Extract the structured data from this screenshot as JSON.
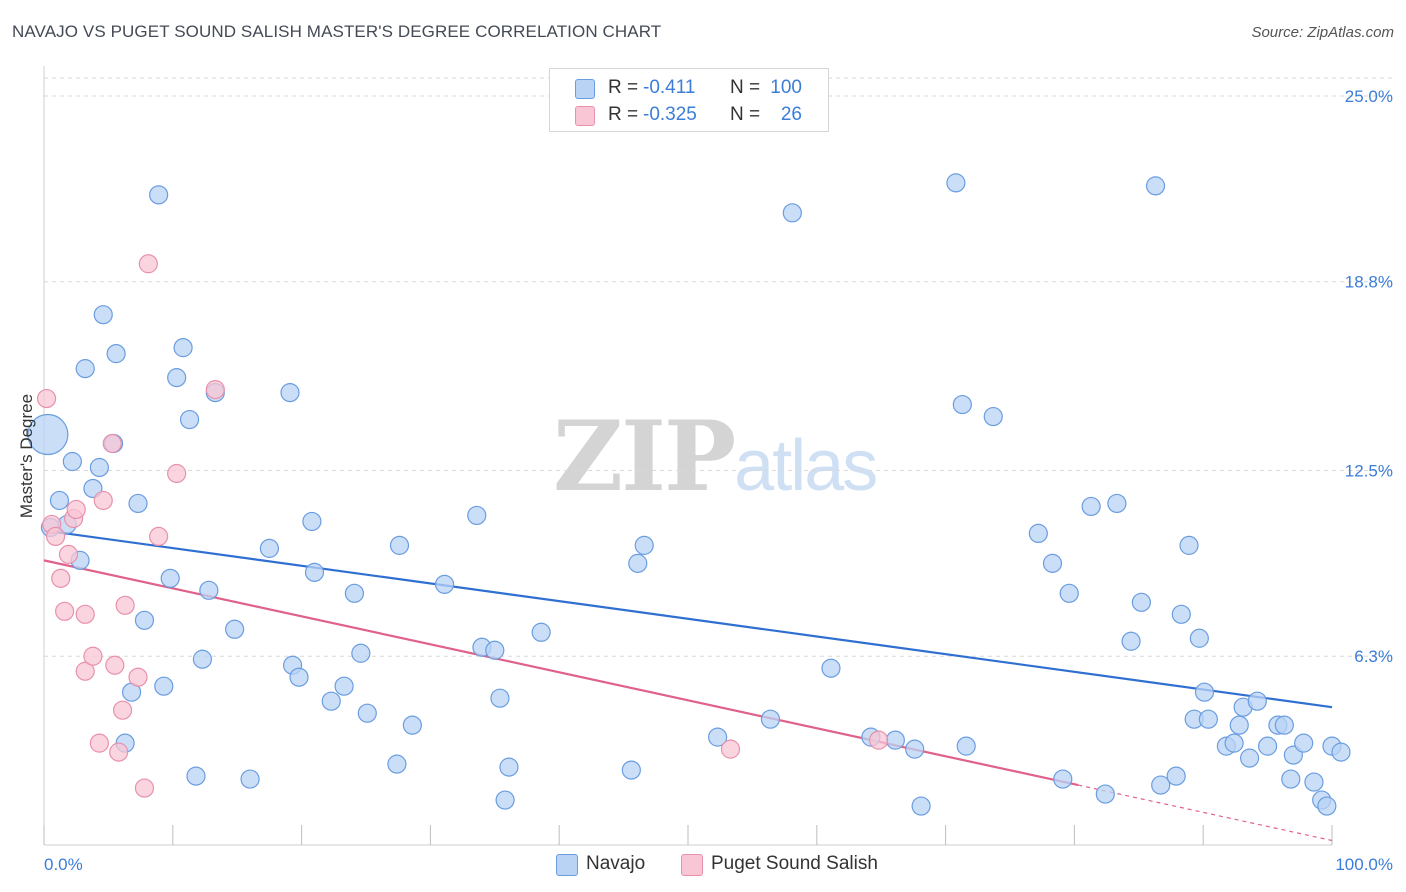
{
  "header": {
    "title": "NAVAJO VS PUGET SOUND SALISH MASTER'S DEGREE CORRELATION CHART",
    "source": "Source: ZipAtlas.com"
  },
  "watermark": {
    "zip": "ZIP",
    "atlas": "atlas"
  },
  "legend": {
    "rows": [
      {
        "r_label": "R =",
        "r_value": "-0.411",
        "n_label": "N =",
        "n_value": "100"
      },
      {
        "r_label": "R =",
        "r_value": "-0.325",
        "n_label": "N =",
        "n_value": "26"
      }
    ]
  },
  "bottom_legend": {
    "navajo": "Navajo",
    "puget": "Puget Sound Salish"
  },
  "colors": {
    "navajo_fill": "#b9d3f5",
    "navajo_stroke": "#6a9de0",
    "navajo_line": "#2f6fd1",
    "puget_fill": "#f8c6d4",
    "puget_stroke": "#e891ab",
    "puget_line": "#e0618a",
    "grid": "#d9d9d9",
    "axis_label": "#3b7dd8"
  },
  "chart_data": {
    "type": "scatter",
    "title": "NAVAJO VS PUGET SOUND SALISH MASTER'S DEGREE CORRELATION CHART",
    "xlabel": "",
    "ylabel": "Master's Degree",
    "x_ticks": [
      "0.0%",
      "100.0%"
    ],
    "y_ticks": [
      {
        "value": 6.3,
        "label": "6.3%"
      },
      {
        "value": 12.5,
        "label": "12.5%"
      },
      {
        "value": 18.8,
        "label": "18.8%"
      },
      {
        "value": 25.0,
        "label": "25.0%"
      }
    ],
    "xlim": [
      0,
      100
    ],
    "ylim": [
      0,
      25.6
    ],
    "grid": "horizontal dashed",
    "legend_position": "top-center",
    "series": [
      {
        "name": "Navajo",
        "points": [
          [
            0.3,
            13.7
          ],
          [
            0.5,
            10.6
          ],
          [
            1.2,
            11.5
          ],
          [
            1.8,
            10.7
          ],
          [
            2.2,
            12.8
          ],
          [
            2.8,
            9.5
          ],
          [
            3.2,
            15.9
          ],
          [
            3.8,
            11.9
          ],
          [
            4.3,
            12.6
          ],
          [
            4.6,
            17.7
          ],
          [
            5.4,
            13.4
          ],
          [
            5.6,
            16.4
          ],
          [
            6.3,
            3.4
          ],
          [
            6.8,
            5.1
          ],
          [
            7.3,
            11.4
          ],
          [
            7.8,
            7.5
          ],
          [
            8.9,
            21.7
          ],
          [
            9.3,
            5.3
          ],
          [
            9.8,
            8.9
          ],
          [
            10.3,
            15.6
          ],
          [
            10.8,
            16.6
          ],
          [
            11.3,
            14.2
          ],
          [
            11.8,
            2.3
          ],
          [
            12.3,
            6.2
          ],
          [
            12.8,
            8.5
          ],
          [
            13.3,
            15.1
          ],
          [
            14.8,
            7.2
          ],
          [
            16.0,
            2.2
          ],
          [
            17.5,
            9.9
          ],
          [
            19.1,
            15.1
          ],
          [
            19.3,
            6.0
          ],
          [
            19.8,
            5.6
          ],
          [
            20.8,
            10.8
          ],
          [
            21.0,
            9.1
          ],
          [
            22.3,
            4.8
          ],
          [
            23.3,
            5.3
          ],
          [
            24.1,
            8.4
          ],
          [
            24.6,
            6.4
          ],
          [
            25.1,
            4.4
          ],
          [
            27.4,
            2.7
          ],
          [
            27.6,
            10.0
          ],
          [
            28.6,
            4.0
          ],
          [
            31.1,
            8.7
          ],
          [
            33.6,
            11.0
          ],
          [
            34.0,
            6.6
          ],
          [
            35.0,
            6.5
          ],
          [
            35.4,
            4.9
          ],
          [
            35.8,
            1.5
          ],
          [
            36.1,
            2.6
          ],
          [
            38.6,
            7.1
          ],
          [
            45.6,
            2.5
          ],
          [
            46.1,
            9.4
          ],
          [
            46.6,
            10.0
          ],
          [
            52.3,
            3.6
          ],
          [
            56.4,
            4.2
          ],
          [
            58.1,
            21.1
          ],
          [
            61.1,
            5.9
          ],
          [
            64.2,
            3.6
          ],
          [
            66.1,
            3.5
          ],
          [
            67.6,
            3.2
          ],
          [
            68.1,
            1.3
          ],
          [
            70.8,
            22.1
          ],
          [
            71.3,
            14.7
          ],
          [
            71.6,
            3.3
          ],
          [
            73.7,
            14.3
          ],
          [
            77.2,
            10.4
          ],
          [
            78.3,
            9.4
          ],
          [
            79.1,
            2.2
          ],
          [
            79.6,
            8.4
          ],
          [
            81.3,
            11.3
          ],
          [
            82.4,
            1.7
          ],
          [
            83.3,
            11.4
          ],
          [
            84.4,
            6.8
          ],
          [
            85.2,
            8.1
          ],
          [
            86.3,
            22.0
          ],
          [
            86.7,
            2.0
          ],
          [
            87.9,
            2.3
          ],
          [
            88.3,
            7.7
          ],
          [
            88.9,
            10.0
          ],
          [
            89.3,
            4.2
          ],
          [
            89.7,
            6.9
          ],
          [
            90.1,
            5.1
          ],
          [
            90.4,
            4.2
          ],
          [
            91.8,
            3.3
          ],
          [
            92.4,
            3.4
          ],
          [
            92.8,
            4.0
          ],
          [
            93.1,
            4.6
          ],
          [
            93.6,
            2.9
          ],
          [
            94.2,
            4.8
          ],
          [
            95.0,
            3.3
          ],
          [
            95.8,
            4.0
          ],
          [
            96.3,
            4.0
          ],
          [
            96.8,
            2.2
          ],
          [
            97.0,
            3.0
          ],
          [
            97.8,
            3.4
          ],
          [
            98.6,
            2.1
          ],
          [
            99.2,
            1.5
          ],
          [
            99.6,
            1.3
          ],
          [
            100.0,
            3.3
          ],
          [
            100.7,
            3.1
          ]
        ]
      },
      {
        "name": "Puget Sound Salish",
        "points": [
          [
            0.2,
            14.9
          ],
          [
            0.6,
            10.7
          ],
          [
            0.9,
            10.3
          ],
          [
            1.3,
            8.9
          ],
          [
            1.6,
            7.8
          ],
          [
            1.9,
            9.7
          ],
          [
            2.3,
            10.9
          ],
          [
            2.5,
            11.2
          ],
          [
            3.2,
            5.8
          ],
          [
            3.2,
            7.7
          ],
          [
            3.8,
            6.3
          ],
          [
            4.3,
            3.4
          ],
          [
            4.6,
            11.5
          ],
          [
            5.3,
            13.4
          ],
          [
            5.5,
            6.0
          ],
          [
            5.8,
            3.1
          ],
          [
            6.1,
            4.5
          ],
          [
            6.3,
            8.0
          ],
          [
            7.3,
            5.6
          ],
          [
            7.8,
            1.9
          ],
          [
            8.1,
            19.4
          ],
          [
            8.9,
            10.3
          ],
          [
            10.3,
            12.4
          ],
          [
            13.3,
            15.2
          ],
          [
            53.3,
            3.2
          ],
          [
            64.8,
            3.5
          ]
        ]
      }
    ],
    "trend_lines": [
      {
        "series": "Navajo",
        "x": [
          0,
          100
        ],
        "y": [
          10.5,
          4.6
        ]
      },
      {
        "series": "Puget Sound Salish",
        "x": [
          0,
          80.3
        ],
        "y": [
          9.5,
          2.0
        ],
        "dashed_extension": [
          80.3,
          100,
          2.0,
          0.15
        ]
      }
    ]
  }
}
